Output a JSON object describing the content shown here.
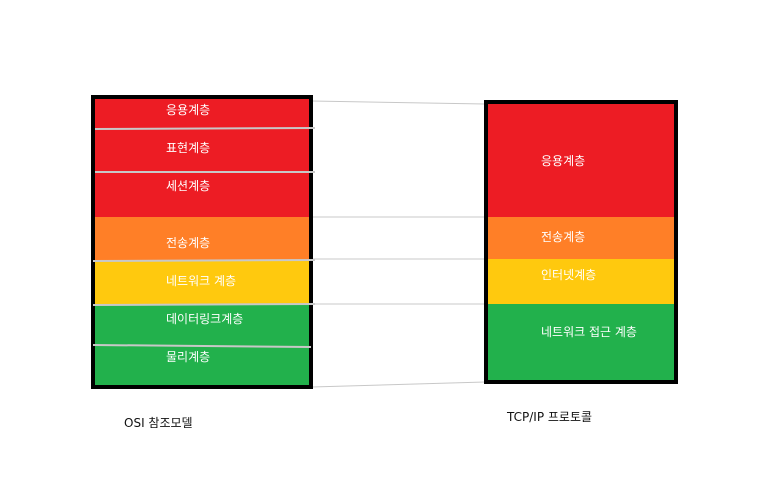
{
  "colors": {
    "application": "#ed1c24",
    "transport": "#ff7f27",
    "network": "#ffc90e",
    "link": "#22b14c",
    "frame": "#000000",
    "separator": "#c8c8c8",
    "connector": "#c8c8c8"
  },
  "osi": {
    "caption": "OSI 참조모델",
    "layers": [
      {
        "label": "응용계층",
        "color": "application"
      },
      {
        "label": "표현계층",
        "color": "application"
      },
      {
        "label": "세션계층",
        "color": "application"
      },
      {
        "label": "전송계층",
        "color": "transport"
      },
      {
        "label": "네트워크 계층",
        "color": "network"
      },
      {
        "label": "데이터링크계층",
        "color": "link"
      },
      {
        "label": "물리계층",
        "color": "link"
      }
    ]
  },
  "tcpip": {
    "caption": "TCP/IP 프로토콜",
    "layers": [
      {
        "label": "응용계층",
        "color": "application"
      },
      {
        "label": "전송계층",
        "color": "transport"
      },
      {
        "label": "인터넷계층",
        "color": "network"
      },
      {
        "label": "네트워크 접근 계층",
        "color": "link"
      }
    ]
  }
}
